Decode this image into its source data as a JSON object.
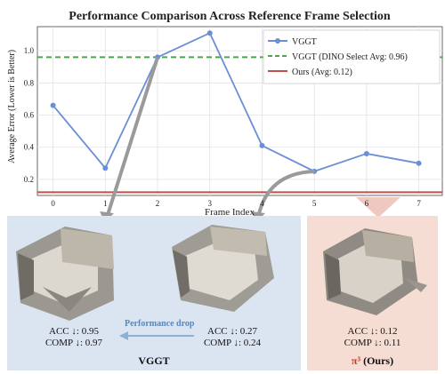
{
  "chart_data": {
    "type": "line",
    "title": "Performance Comparison Across Reference Frame Selection",
    "xlabel": "Frame Index",
    "ylabel": "Average Error (Lower is Better)",
    "x": [
      0,
      1,
      2,
      3,
      4,
      5,
      6,
      7
    ],
    "xticks": [
      "0",
      "1",
      "2",
      "3",
      "4",
      "5",
      "6",
      "7"
    ],
    "yticks": [
      "0.2",
      "0.4",
      "0.6",
      "0.8",
      "1.0"
    ],
    "ylim": [
      0.1,
      1.15
    ],
    "xlim": [
      -0.3,
      7.45
    ],
    "grid": true,
    "legend": "top-right",
    "series": [
      {
        "name": "VGGT",
        "values": [
          0.66,
          0.27,
          0.96,
          1.11,
          0.41,
          0.25,
          0.36,
          0.3
        ],
        "color": "#6b8fd6",
        "style": "line-marker"
      }
    ],
    "hlines": [
      {
        "name": "VGGT (DINO Select Avg: 0.96)",
        "value": 0.96,
        "color": "#4ca64c",
        "style": "dashed"
      },
      {
        "name": "Ours (Avg: 0.12)",
        "value": 0.12,
        "color": "#c0504d",
        "style": "solid"
      }
    ]
  },
  "bottom": {
    "vggt_label": "VGGT",
    "ours_label": "(Ours)",
    "pi_symbol": "π³",
    "perf_drop": "Performance drop",
    "recon1": {
      "acc": "ACC ↓: 0.95",
      "comp": "COMP ↓: 0.97"
    },
    "recon2": {
      "acc": "ACC ↓: 0.27",
      "comp": "COMP ↓: 0.24"
    },
    "recon3": {
      "acc": "ACC ↓: 0.12",
      "comp": "COMP ↓: 0.11"
    },
    "colors": {
      "vggt_panel": "#dbe5f2",
      "ours_panel": "#f6ddd3",
      "pi": "#c0392b"
    }
  }
}
